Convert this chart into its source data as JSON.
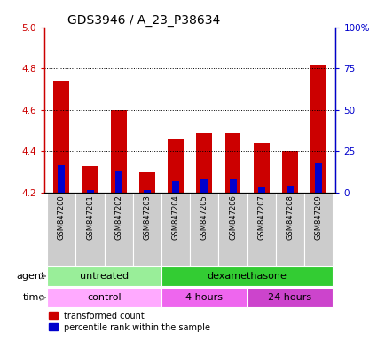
{
  "title": "GDS3946 / A_23_P38634",
  "samples": [
    "GSM847200",
    "GSM847201",
    "GSM847202",
    "GSM847203",
    "GSM847204",
    "GSM847205",
    "GSM847206",
    "GSM847207",
    "GSM847208",
    "GSM847209"
  ],
  "red_values": [
    4.74,
    4.33,
    4.6,
    4.3,
    4.46,
    4.49,
    4.49,
    4.44,
    4.4,
    4.82
  ],
  "blue_values": [
    4.335,
    4.215,
    4.305,
    4.215,
    4.255,
    4.265,
    4.265,
    4.225,
    4.235,
    4.345
  ],
  "y_min": 4.2,
  "y_max": 5.0,
  "y_ticks": [
    4.2,
    4.4,
    4.6,
    4.8,
    5.0
  ],
  "right_y_ticks": [
    0,
    25,
    50,
    75,
    100
  ],
  "right_y_labels": [
    "0",
    "25",
    "50",
    "75",
    "100%"
  ],
  "bar_bottom": 4.2,
  "agent_segments": [
    {
      "text": "untreated",
      "start": 0,
      "end": 3,
      "color": "#99ee99"
    },
    {
      "text": "dexamethasone",
      "start": 4,
      "end": 9,
      "color": "#33cc33"
    }
  ],
  "time_segments": [
    {
      "text": "control",
      "start": 0,
      "end": 3,
      "color": "#ffaaff"
    },
    {
      "text": "4 hours",
      "start": 4,
      "end": 6,
      "color": "#ee66ee"
    },
    {
      "text": "24 hours",
      "start": 7,
      "end": 9,
      "color": "#cc44cc"
    }
  ],
  "xticklabel_bg": "#cccccc",
  "red_color": "#cc0000",
  "blue_color": "#0000cc",
  "title_fontsize": 10,
  "tick_fontsize": 7.5,
  "sample_fontsize": 6,
  "label_fontsize": 8,
  "legend_fontsize": 7,
  "legend_red": "transformed count",
  "legend_blue": "percentile rank within the sample"
}
